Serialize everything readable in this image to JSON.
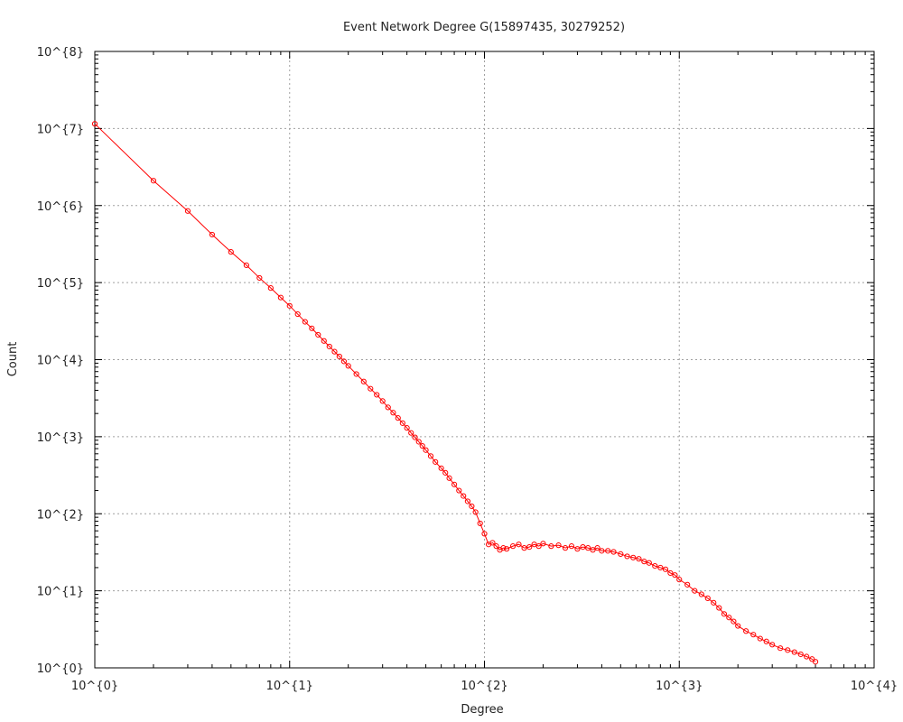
{
  "chart_data": {
    "type": "line",
    "title": "Event Network Degree G(15897435, 30279252)",
    "xlabel": "Degree",
    "ylabel": "Count",
    "xscale": "log",
    "yscale": "log",
    "xlim": [
      1,
      10000
    ],
    "ylim": [
      1,
      100000000
    ],
    "grid": true,
    "xticks": [
      1,
      10,
      100,
      1000,
      10000
    ],
    "xtick_labels": [
      "10^{0}",
      "10^{1}",
      "10^{2}",
      "10^{3}",
      "10^{4}"
    ],
    "yticks": [
      1,
      10,
      100,
      1000,
      10000,
      100000,
      1000000,
      10000000,
      100000000
    ],
    "ytick_labels": [
      "10^{0}",
      "10^{1}",
      "10^{2}",
      "10^{3}",
      "10^{4}",
      "10^{5}",
      "10^{6}",
      "10^{7}",
      "10^{8}"
    ],
    "series_color": "#ff0000",
    "marker": "circle",
    "series": [
      {
        "x": [
          1,
          2,
          3,
          4,
          5,
          6,
          7,
          8,
          9,
          10,
          11,
          12,
          13,
          14,
          15,
          16,
          17,
          18,
          19,
          20,
          22,
          24,
          26,
          28,
          30,
          32,
          34,
          36,
          38,
          40,
          42,
          44,
          46,
          48,
          50,
          53,
          56,
          60,
          63,
          66,
          70,
          74,
          78,
          82,
          86,
          90,
          95,
          100,
          105,
          110,
          115,
          120,
          125,
          130,
          140,
          150,
          160,
          170,
          180,
          190,
          200,
          220,
          240,
          260,
          280,
          300,
          320,
          340,
          360,
          380,
          400,
          430,
          460,
          500,
          540,
          580,
          620,
          660,
          700,
          750,
          800,
          850,
          900,
          950,
          1000,
          1100,
          1200,
          1300,
          1400,
          1500,
          1600,
          1700,
          1800,
          1900,
          2000,
          2200,
          2400,
          2600,
          2800,
          3000,
          3300,
          3600,
          3900,
          4200,
          4500,
          4800,
          5000
        ],
        "y": [
          11500000,
          2100000,
          850000,
          420000,
          250000,
          168000,
          115000,
          85000,
          64000,
          50000,
          39000,
          31000,
          25500,
          21000,
          17500,
          14800,
          12700,
          11000,
          9500,
          8300,
          6500,
          5200,
          4200,
          3500,
          2900,
          2400,
          2050,
          1750,
          1500,
          1300,
          1120,
          980,
          860,
          760,
          670,
          560,
          470,
          390,
          340,
          290,
          240,
          200,
          170,
          145,
          125,
          105,
          75,
          55,
          40,
          42,
          38,
          34,
          36,
          35,
          38,
          40,
          36,
          37,
          40,
          38,
          41,
          38,
          39,
          36,
          38,
          35,
          37,
          36,
          34,
          36,
          33,
          33,
          32,
          30,
          28,
          27,
          26,
          24,
          23,
          21,
          20,
          19,
          17,
          16,
          14,
          12,
          10,
          9,
          8,
          7,
          6,
          5,
          4.5,
          4,
          3.5,
          3,
          2.7,
          2.4,
          2.2,
          2,
          1.8,
          1.7,
          1.6,
          1.5,
          1.4,
          1.3,
          1.2
        ]
      }
    ]
  }
}
